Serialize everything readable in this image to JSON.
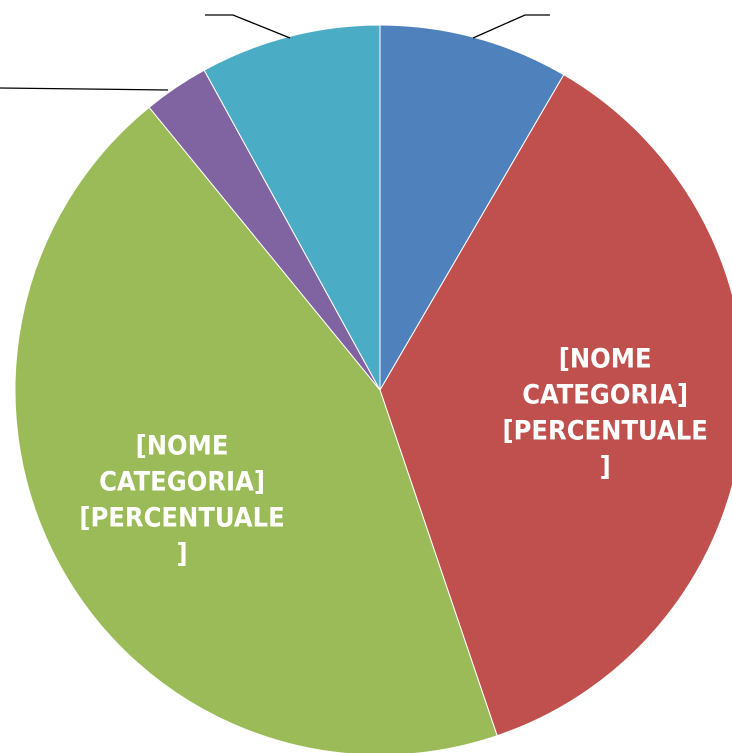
{
  "chart_data": {
    "type": "pie",
    "values": [
      8.4,
      36.4,
      44.3,
      2.9,
      8.0
    ],
    "colors": [
      "#4f81bd",
      "#c0504d",
      "#9bbb59",
      "#8064a2",
      "#4bacc6"
    ],
    "data_labels": [
      null,
      "[NOME CATEGORIA] [PERCENTUALE]",
      "[NOME CATEGORIA] [PERCENTUALE]",
      null,
      null
    ]
  }
}
